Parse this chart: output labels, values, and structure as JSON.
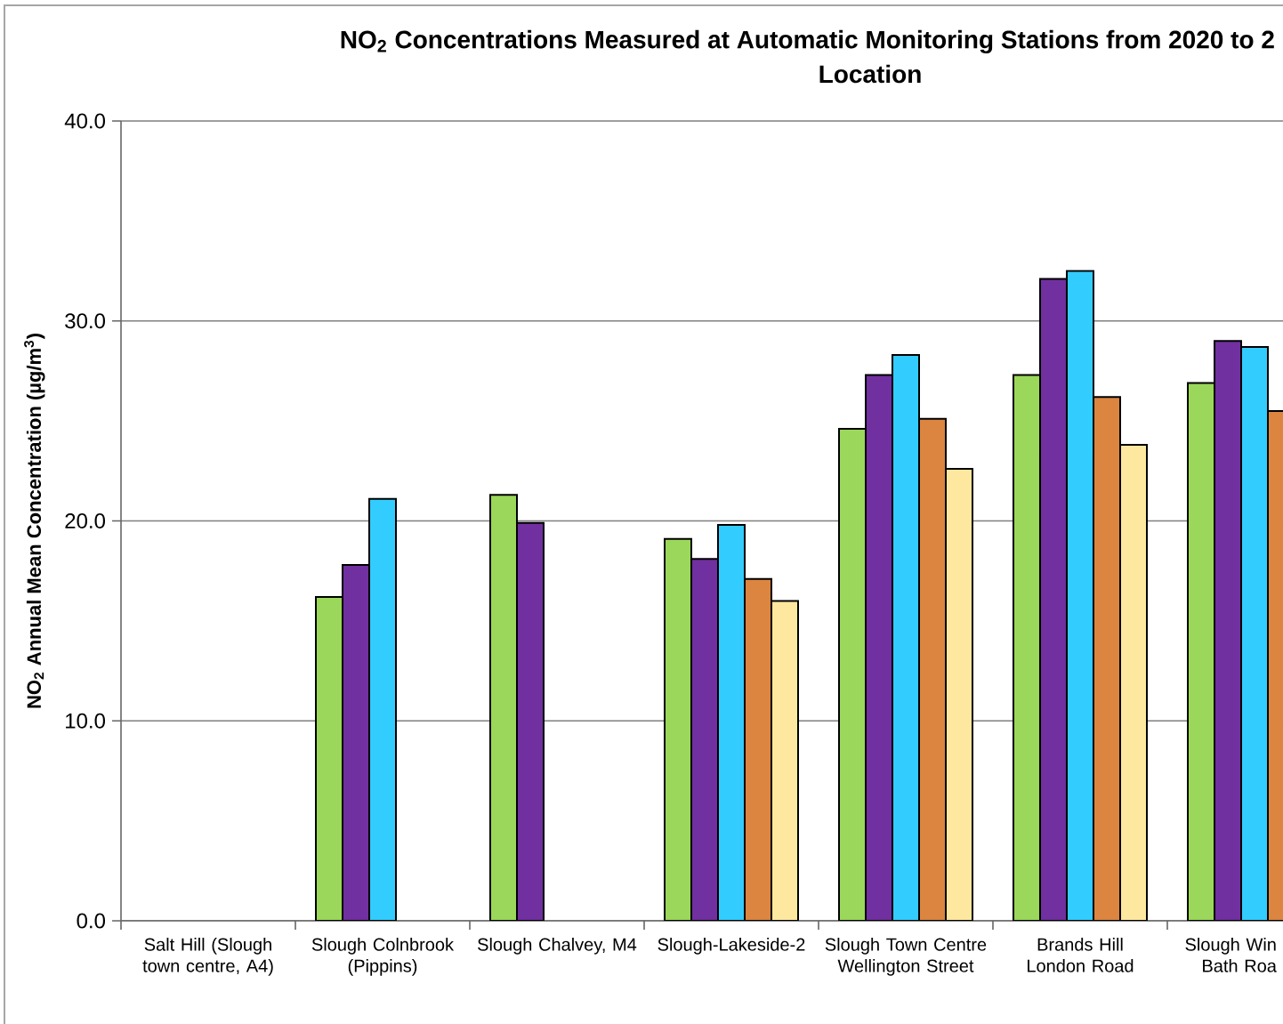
{
  "chart_data": {
    "type": "bar",
    "title": "NO$_{2}$ Concentrations Measured at Automatic Monitoring Stations from 2020 to 2",
    "subtitle": "Location",
    "ylabel": "NO$_{2}$  Annual Mean Concentration (µg/m$^{3}$)",
    "categories": [
      "Salt Hill (Slough town centre, A4)",
      "Slough Colnbrook (Pippins)",
      "Slough Chalvey, M4",
      "Slough-Lakeside-2",
      "Slough Town Centre Wellington Street",
      "Brands Hill London Road",
      "Slough Win Bath Roa"
    ],
    "ylim": [
      0,
      40
    ],
    "yticks": [
      {
        "value": 0,
        "label": "0.0"
      },
      {
        "value": 10,
        "label": "10.0"
      },
      {
        "value": 20,
        "label": "20.0"
      },
      {
        "value": 30,
        "label": "30.0"
      },
      {
        "value": 40,
        "label": "40.0"
      }
    ],
    "grid": "y",
    "series": [
      {
        "color": "#9bd75a",
        "values": [
          null,
          16.2,
          21.3,
          19.1,
          24.6,
          27.3,
          26.9
        ]
      },
      {
        "color": "#70309f",
        "values": [
          null,
          17.8,
          19.9,
          18.1,
          27.3,
          32.1,
          29.0
        ]
      },
      {
        "color": "#33ccff",
        "values": [
          null,
          21.1,
          null,
          19.8,
          28.3,
          32.5,
          28.7
        ]
      },
      {
        "color": "#db8540",
        "values": [
          null,
          null,
          null,
          17.1,
          25.1,
          26.2,
          25.5
        ]
      },
      {
        "color": "#fee8a0",
        "values": [
          null,
          null,
          null,
          16.0,
          22.6,
          23.8,
          null
        ]
      }
    ]
  }
}
